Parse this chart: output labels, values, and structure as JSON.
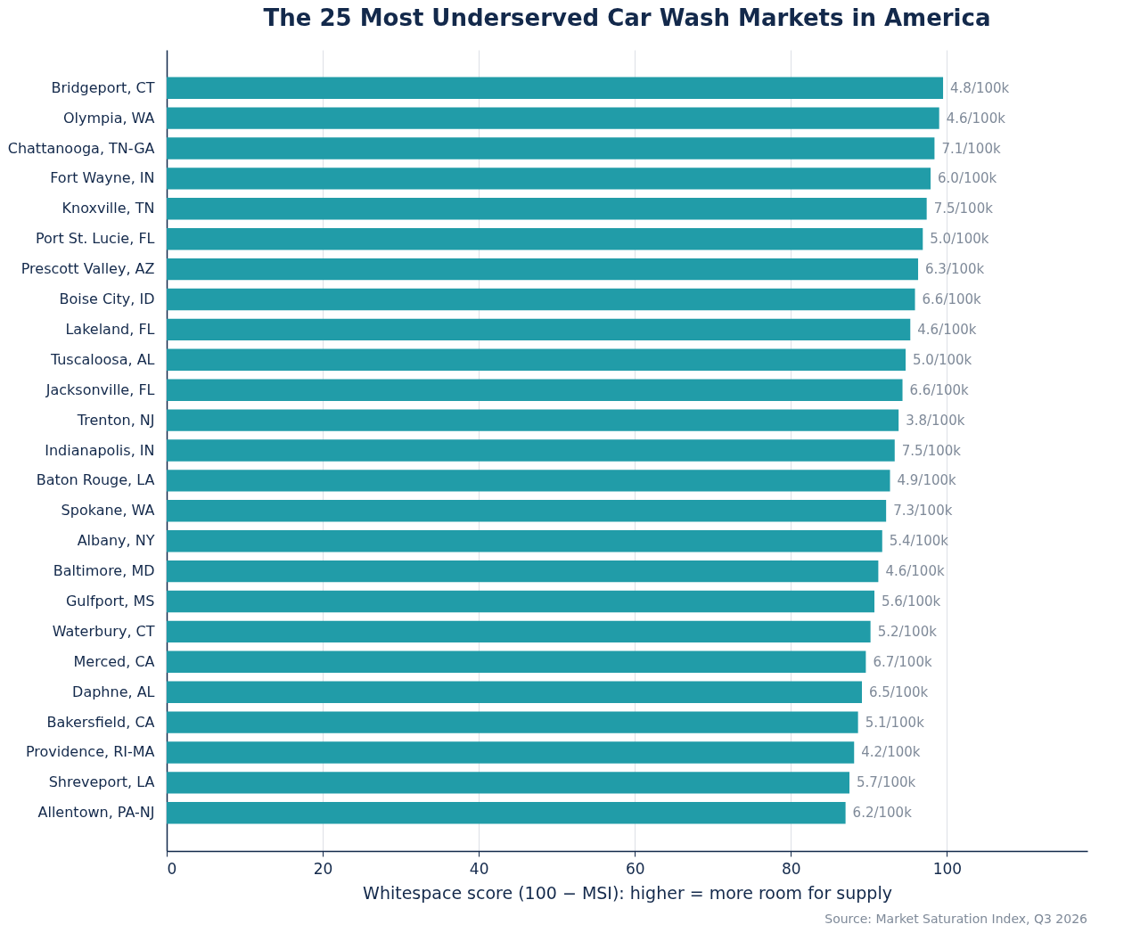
{
  "chart_data": {
    "type": "bar",
    "orientation": "horizontal",
    "title": "The 25 Most Underserved Car Wash Markets in America",
    "xlabel": "Whitespace score (100 − MSI): higher = more room for supply",
    "categories": [
      "Bridgeport, CT",
      "Olympia, WA",
      "Chattanooga, TN-GA",
      "Fort Wayne, IN",
      "Knoxville, TN",
      "Port St. Lucie, FL",
      "Prescott Valley, AZ",
      "Boise City, ID",
      "Lakeland, FL",
      "Tuscaloosa, AL",
      "Jacksonville, FL",
      "Trenton, NJ",
      "Indianapolis, IN",
      "Baton Rouge, LA",
      "Spokane, WA",
      "Albany, NY",
      "Baltimore, MD",
      "Gulfport, MS",
      "Waterbury, CT",
      "Merced, CA",
      "Daphne, AL",
      "Bakersfield, CA",
      "Providence, RI-MA",
      "Shreveport, LA",
      "Allentown, PA-NJ"
    ],
    "series": [
      {
        "color": "#219ca8",
        "values": [
          99.5,
          99.0,
          98.4,
          97.9,
          97.4,
          96.9,
          96.3,
          95.9,
          95.3,
          94.7,
          94.3,
          93.8,
          93.3,
          92.7,
          92.2,
          91.7,
          91.2,
          90.7,
          90.2,
          89.6,
          89.1,
          88.6,
          88.1,
          87.5,
          87.0
        ],
        "value_labels": [
          "4.8/100k",
          "4.6/100k",
          "7.1/100k",
          "6.0/100k",
          "7.5/100k",
          "5.0/100k",
          "6.3/100k",
          "6.6/100k",
          "4.6/100k",
          "5.0/100k",
          "6.6/100k",
          "3.8/100k",
          "7.5/100k",
          "4.9/100k",
          "7.3/100k",
          "5.4/100k",
          "4.6/100k",
          "5.6/100k",
          "5.2/100k",
          "6.7/100k",
          "6.5/100k",
          "5.1/100k",
          "4.2/100k",
          "5.7/100k",
          "6.2/100k"
        ]
      }
    ],
    "xlim": [
      0,
      118
    ],
    "xticks": [
      0,
      20,
      40,
      60,
      80,
      100
    ],
    "grid": "x",
    "annotations": [
      "Source: Market Saturation Index, Q3 2026"
    ]
  }
}
